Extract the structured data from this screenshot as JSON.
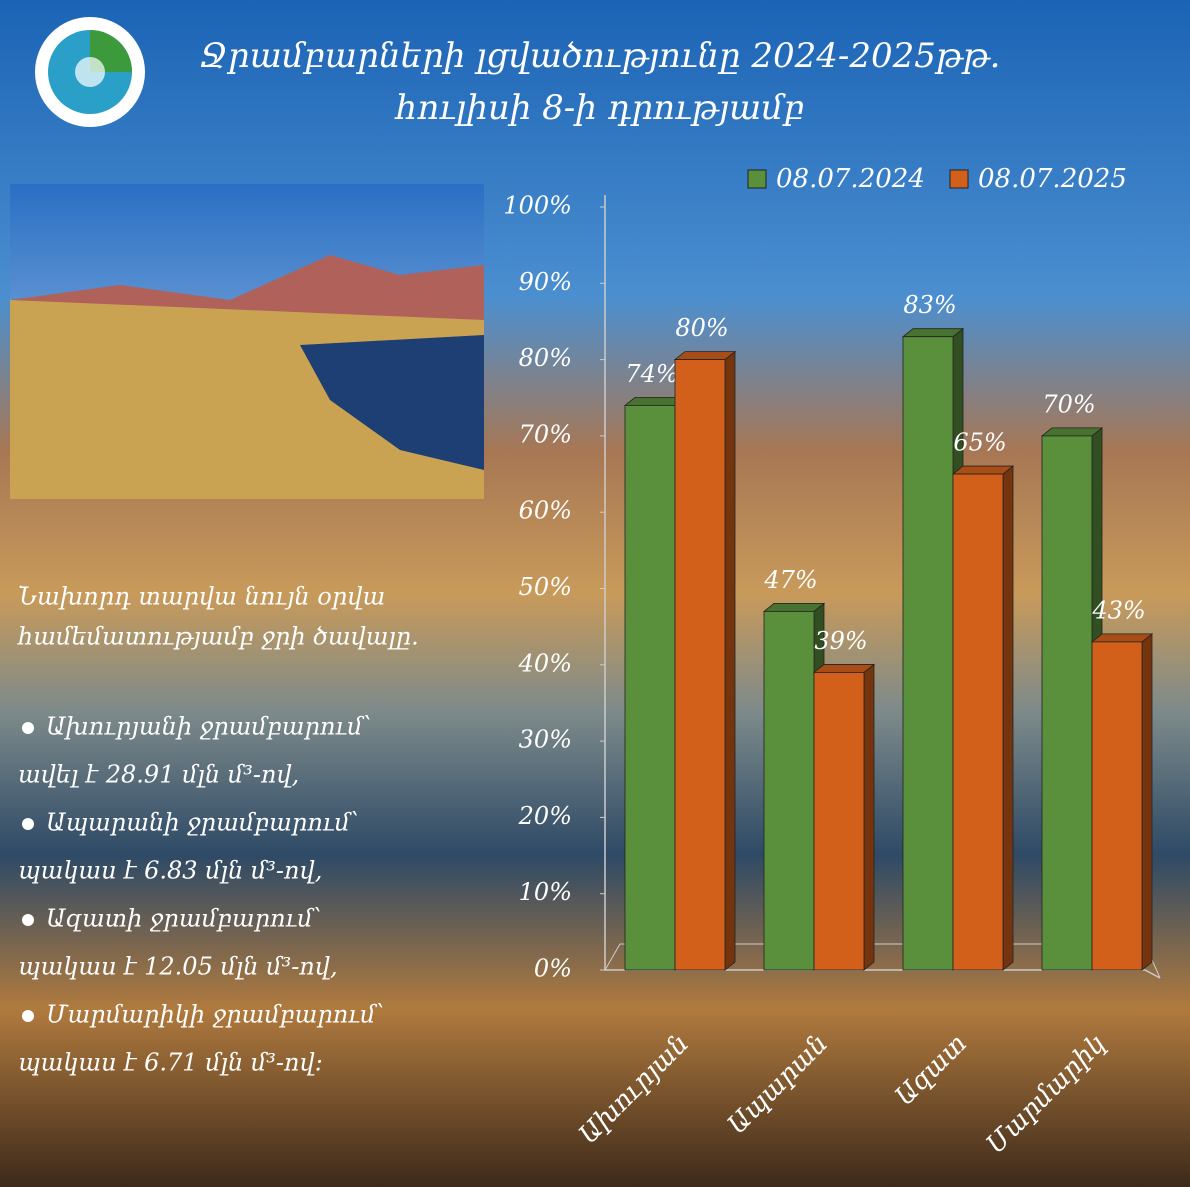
{
  "chart_data": {
    "type": "bar",
    "title": "Ջրամբարների լցվածությունը 2024-2025թթ.",
    "subtitle": "հուլիսի 8-ի դրությամբ",
    "categories": [
      "Ախուրյան",
      "Ապարան",
      "Ազատ",
      "Մարմարիկ"
    ],
    "series": [
      {
        "name": "08.07.2024",
        "color": "#5a8f3c",
        "values": [
          74,
          47,
          83,
          70
        ],
        "value_labels": [
          "74%",
          "47%",
          "83%",
          "70%"
        ]
      },
      {
        "name": "08.07.2025",
        "color": "#d2601a",
        "values": [
          80,
          39,
          65,
          43
        ],
        "value_labels": [
          "80%",
          "39%",
          "65%",
          "43%"
        ]
      }
    ],
    "ylim": [
      0,
      100
    ],
    "yticks": [
      {
        "value": 0,
        "label": "0%"
      },
      {
        "value": 10,
        "label": "10%"
      },
      {
        "value": 20,
        "label": "20%"
      },
      {
        "value": 30,
        "label": "30%"
      },
      {
        "value": 40,
        "label": "40%"
      },
      {
        "value": 50,
        "label": "50%"
      },
      {
        "value": 60,
        "label": "60%"
      },
      {
        "value": 70,
        "label": "70%"
      },
      {
        "value": 80,
        "label": "80%"
      },
      {
        "value": 90,
        "label": "90%"
      },
      {
        "value": 100,
        "label": "100%"
      }
    ],
    "grid": false,
    "legend": "top"
  },
  "notes": {
    "intro": [
      "Նախորդ տարվա նույն օրվա",
      "համեմատությամբ ջրի ծավալը."
    ],
    "items": [
      [
        "Ախուրյանի ջրամբարում՝",
        "ավել է 28.91 մլն մ³-ով,"
      ],
      [
        "Ապարանի ջրամբարում՝",
        "պակաս է 6.83 մլն մ³-ով,"
      ],
      [
        "Ազատի ջրամբարում՝",
        "պակաս է  12.05 մլն մ³-ով,"
      ],
      [
        "Մարմարիկի ջրամբարում՝",
        "պակաս է 6.71 մլն մ³-ով:"
      ]
    ]
  }
}
